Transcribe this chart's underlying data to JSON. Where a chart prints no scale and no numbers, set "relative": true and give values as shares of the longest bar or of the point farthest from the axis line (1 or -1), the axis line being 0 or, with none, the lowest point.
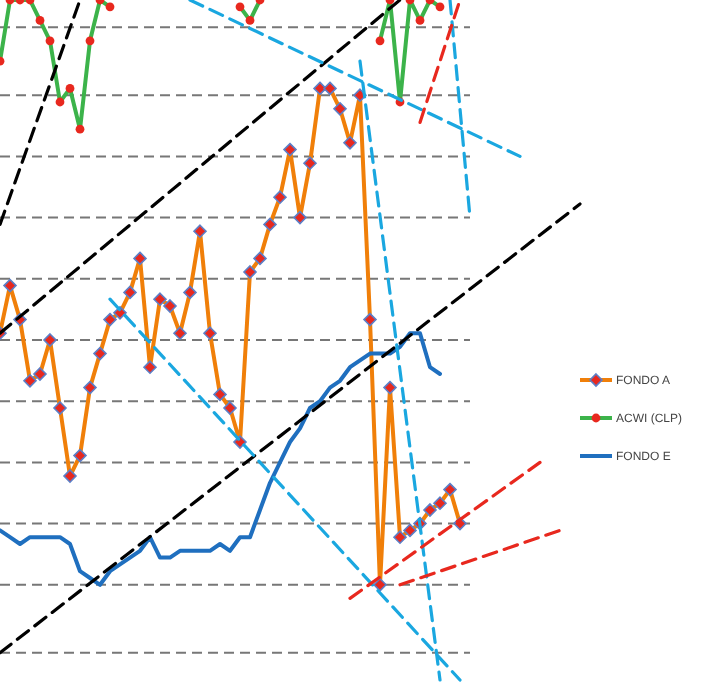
{
  "chart_data": {
    "type": "line",
    "relative": true,
    "legend": "right",
    "ref_lines": [
      {
        "axis": "y",
        "value": 0.96,
        "color": "#777777",
        "line_style": "dashed"
      },
      {
        "axis": "y",
        "value": 0.86,
        "color": "#777777",
        "line_style": "dashed"
      },
      {
        "axis": "y",
        "value": 0.77,
        "color": "#777777",
        "line_style": "dashed"
      },
      {
        "axis": "y",
        "value": 0.68,
        "color": "#777777",
        "line_style": "dashed"
      },
      {
        "axis": "y",
        "value": 0.59,
        "color": "#777777",
        "line_style": "dashed"
      },
      {
        "axis": "y",
        "value": 0.5,
        "color": "#777777",
        "line_style": "dashed"
      },
      {
        "axis": "y",
        "value": 0.41,
        "color": "#777777",
        "line_style": "dashed"
      },
      {
        "axis": "y",
        "value": 0.32,
        "color": "#777777",
        "line_style": "dashed"
      },
      {
        "axis": "y",
        "value": 0.23,
        "color": "#777777",
        "line_style": "dashed"
      },
      {
        "axis": "y",
        "value": 0.14,
        "color": "#777777",
        "line_style": "dashed"
      },
      {
        "axis": "y",
        "value": 0.04,
        "color": "#777777",
        "line_style": "dashed"
      }
    ],
    "categories": [
      null,
      null,
      null,
      null,
      null,
      null,
      null,
      null,
      null,
      null,
      null,
      null,
      null,
      null,
      null,
      null,
      null,
      null,
      null,
      null,
      null,
      null,
      null,
      null,
      null,
      null,
      null,
      null,
      null,
      null,
      null,
      null,
      null,
      null,
      null,
      null,
      null,
      null,
      null,
      null,
      null,
      null,
      null,
      null,
      null,
      null,
      null,
      null,
      null,
      null,
      null,
      null,
      null,
      null,
      null,
      null,
      null,
      null,
      null
    ],
    "series": [
      {
        "name": "FONDO A",
        "color": "#f07f09",
        "marker": "diamond",
        "values": [
          0.51,
          0.58,
          0.53,
          0.44,
          0.45,
          0.5,
          0.4,
          0.3,
          0.33,
          0.43,
          0.48,
          0.53,
          0.54,
          0.57,
          0.62,
          0.46,
          0.56,
          0.55,
          0.51,
          0.57,
          0.66,
          0.51,
          0.42,
          0.4,
          0.35,
          0.6,
          0.62,
          0.67,
          0.71,
          0.78,
          0.68,
          0.76,
          0.87,
          0.87,
          0.84,
          0.79,
          0.86,
          0.53,
          0.14,
          0.43,
          0.21,
          0.22,
          0.23,
          0.25,
          0.26,
          0.28,
          0.23,
          null,
          null,
          null,
          null,
          null,
          null,
          null,
          null,
          null,
          null,
          null,
          null
        ]
      },
      {
        "name": "ACWI (CLP)",
        "color": "#3cb34a",
        "marker": "circle",
        "values": [
          0.91,
          1,
          1,
          1,
          0.97,
          0.94,
          0.85,
          0.87,
          0.81,
          0.94,
          1,
          0.99,
          null,
          null,
          null,
          null,
          null,
          null,
          null,
          null,
          null,
          null,
          null,
          null,
          0.99,
          0.97,
          1,
          null,
          null,
          null,
          null,
          null,
          null,
          null,
          null,
          null,
          null,
          null,
          0.94,
          1,
          0.85,
          1,
          0.97,
          1,
          0.99,
          null,
          null,
          null,
          null,
          null,
          null,
          null,
          null,
          null,
          null,
          null,
          null,
          null,
          null
        ]
      },
      {
        "name": "FONDO E",
        "color": "#1f6fbf",
        "marker": "none",
        "values": [
          0.22,
          0.21,
          0.2,
          0.21,
          0.21,
          0.21,
          0.21,
          0.2,
          0.16,
          0.15,
          0.14,
          0.16,
          0.17,
          0.18,
          0.19,
          0.21,
          0.18,
          0.18,
          0.19,
          0.19,
          0.19,
          0.19,
          0.2,
          0.19,
          0.21,
          0.21,
          0.25,
          0.29,
          0.32,
          0.35,
          0.37,
          0.4,
          0.41,
          0.43,
          0.44,
          0.46,
          0.47,
          0.48,
          0.48,
          0.48,
          0.49,
          0.51,
          0.51,
          0.46,
          0.45,
          null,
          null,
          null,
          null,
          null,
          null,
          null,
          null,
          null,
          null,
          null,
          null,
          null,
          null
        ]
      },
      {
        "color": "#000000",
        "marker": "none",
        "line_style": "dashed",
        "values": [
          0.67,
          null,
          null,
          null,
          null,
          null,
          null,
          null,
          1,
          null,
          null,
          null,
          null,
          null,
          null,
          null,
          null,
          null,
          null,
          null,
          null,
          null,
          null,
          null,
          null,
          null,
          null,
          null,
          null,
          null,
          null,
          null,
          null,
          null,
          null,
          null,
          null,
          null,
          null,
          null,
          null,
          null,
          null,
          null,
          null,
          null,
          null,
          null,
          null,
          null,
          null,
          null,
          null,
          null,
          null,
          null,
          null,
          null,
          null
        ]
      },
      {
        "color": "#000000",
        "marker": "none",
        "line_style": "dashed",
        "values": [
          0.51,
          null,
          null,
          null,
          null,
          null,
          null,
          null,
          null,
          null,
          null,
          null,
          null,
          null,
          null,
          null,
          null,
          null,
          null,
          null,
          null,
          null,
          null,
          null,
          null,
          null,
          null,
          null,
          null,
          null,
          null,
          null,
          null,
          null,
          null,
          null,
          null,
          null,
          null,
          null,
          1,
          null,
          null,
          null,
          null,
          null,
          null,
          null,
          null,
          null,
          null,
          null,
          null,
          null,
          null,
          null,
          null,
          null,
          null
        ]
      },
      {
        "color": "#000000",
        "marker": "none",
        "line_style": "dashed",
        "values": [
          0.04,
          null,
          null,
          null,
          null,
          null,
          null,
          null,
          null,
          null,
          null,
          null,
          null,
          null,
          null,
          null,
          null,
          null,
          null,
          null,
          null,
          null,
          null,
          null,
          null,
          null,
          null,
          null,
          null,
          null,
          null,
          null,
          null,
          null,
          null,
          null,
          null,
          null,
          null,
          null,
          null,
          null,
          null,
          null,
          null,
          null,
          null,
          null,
          null,
          null,
          null,
          null,
          null,
          null,
          null,
          null,
          null,
          null,
          0.7
        ]
      },
      {
        "color": "#1aa7e0",
        "marker": "none",
        "line_style": "dashed",
        "values": [
          null,
          null,
          null,
          null,
          null,
          null,
          null,
          null,
          null,
          null,
          null,
          null,
          null,
          null,
          null,
          null,
          null,
          null,
          null,
          1,
          null,
          null,
          null,
          null,
          null,
          null,
          null,
          null,
          null,
          null,
          null,
          null,
          null,
          null,
          null,
          null,
          null,
          null,
          null,
          null,
          null,
          null,
          null,
          null,
          null,
          null,
          null,
          null,
          null,
          null,
          null,
          null,
          0.77,
          null,
          null,
          null,
          null,
          null,
          null
        ]
      },
      {
        "color": "#1aa7e0",
        "marker": "none",
        "line_style": "dashed",
        "values": [
          null,
          null,
          null,
          null,
          null,
          null,
          null,
          null,
          null,
          null,
          null,
          0.56,
          null,
          null,
          null,
          null,
          null,
          null,
          null,
          null,
          null,
          null,
          null,
          null,
          null,
          null,
          null,
          null,
          null,
          null,
          null,
          null,
          null,
          null,
          null,
          null,
          null,
          null,
          null,
          null,
          null,
          null,
          null,
          null,
          null,
          null,
          0,
          null,
          null,
          null,
          null,
          null,
          null,
          null,
          null,
          null,
          null,
          null,
          null
        ]
      },
      {
        "color": "#1aa7e0",
        "marker": "none",
        "line_style": "dashed",
        "values": [
          null,
          null,
          null,
          null,
          null,
          null,
          null,
          null,
          null,
          null,
          null,
          null,
          null,
          null,
          null,
          null,
          null,
          null,
          null,
          null,
          null,
          null,
          null,
          null,
          null,
          null,
          null,
          null,
          null,
          null,
          null,
          null,
          null,
          null,
          null,
          null,
          0.91,
          null,
          null,
          null,
          null,
          null,
          null,
          null,
          0,
          null,
          null,
          null,
          null,
          null,
          null,
          null,
          null,
          null,
          null,
          null,
          null,
          null,
          null
        ]
      },
      {
        "color": "#1aa7e0",
        "marker": "none",
        "line_style": "dashed",
        "values": [
          null,
          null,
          null,
          null,
          null,
          null,
          null,
          null,
          null,
          null,
          null,
          null,
          null,
          null,
          null,
          null,
          null,
          null,
          null,
          null,
          null,
          null,
          null,
          null,
          null,
          null,
          null,
          null,
          null,
          null,
          null,
          null,
          null,
          null,
          null,
          null,
          null,
          null,
          null,
          null,
          null,
          null,
          null,
          null,
          null,
          1,
          null,
          0.68,
          null,
          null,
          null,
          null,
          null,
          null,
          null,
          null,
          null,
          null,
          null
        ]
      },
      {
        "color": "#e8281e",
        "marker": "none",
        "line_style": "dashed",
        "values": [
          null,
          null,
          null,
          null,
          null,
          null,
          null,
          null,
          null,
          null,
          null,
          null,
          null,
          null,
          null,
          null,
          null,
          null,
          null,
          null,
          null,
          null,
          null,
          null,
          null,
          null,
          null,
          null,
          null,
          null,
          null,
          null,
          null,
          null,
          null,
          0.12,
          null,
          null,
          null,
          null,
          null,
          null,
          null,
          null,
          null,
          null,
          null,
          null,
          null,
          null,
          null,
          null,
          null,
          null,
          0.32,
          null,
          null,
          null,
          null
        ]
      },
      {
        "color": "#e8281e",
        "marker": "none",
        "line_style": "dashed",
        "values": [
          null,
          null,
          null,
          null,
          null,
          null,
          null,
          null,
          null,
          null,
          null,
          null,
          null,
          null,
          null,
          null,
          null,
          null,
          null,
          null,
          null,
          null,
          null,
          null,
          null,
          null,
          null,
          null,
          null,
          null,
          null,
          null,
          null,
          null,
          null,
          null,
          null,
          null,
          null,
          null,
          0.14,
          null,
          null,
          null,
          null,
          null,
          null,
          null,
          null,
          null,
          null,
          null,
          null,
          null,
          null,
          null,
          0.22,
          null,
          null
        ]
      },
      {
        "color": "#e8281e",
        "marker": "none",
        "line_style": "dashed",
        "values": [
          null,
          null,
          null,
          null,
          null,
          null,
          null,
          null,
          null,
          null,
          null,
          null,
          null,
          null,
          null,
          null,
          null,
          null,
          null,
          null,
          null,
          null,
          null,
          null,
          null,
          null,
          null,
          null,
          null,
          null,
          null,
          null,
          null,
          null,
          null,
          null,
          null,
          null,
          null,
          null,
          null,
          null,
          0.82,
          null,
          null,
          null,
          1,
          null,
          null,
          null,
          null,
          null,
          null,
          null,
          null,
          null,
          null,
          null,
          null
        ]
      }
    ]
  }
}
